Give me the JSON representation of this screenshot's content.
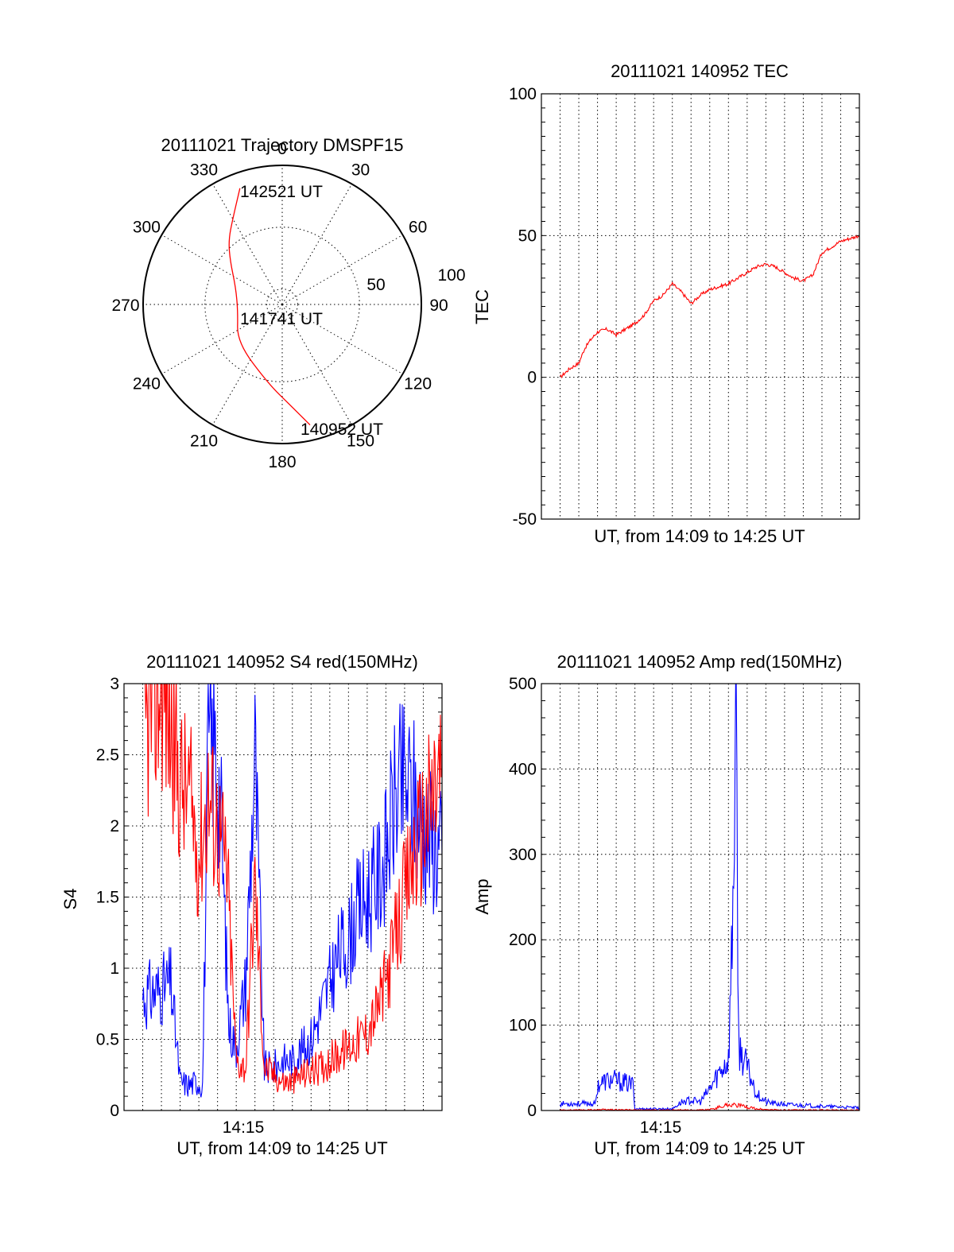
{
  "chart_data": [
    {
      "type": "polar",
      "title": "20111021 Trajectory DMSPF15",
      "angle_ticks": [
        "0",
        "30",
        "60",
        "90",
        "120",
        "150",
        "180",
        "210",
        "240",
        "270",
        "300",
        "330"
      ],
      "radius_ticks": [
        "50",
        "100"
      ],
      "series": [
        {
          "color": "#ff0000",
          "points": [
            {
              "az": 167,
              "el": 10,
              "label": "140952 UT"
            },
            {
              "az": 175,
              "el": 24
            },
            {
              "az": 190,
              "el": 38
            },
            {
              "az": 230,
              "el": 52
            },
            {
              "az": 262,
              "el": 61
            },
            {
              "az": 290,
              "el": 58
            },
            {
              "az": 310,
              "el": 46
            },
            {
              "az": 320,
              "el": 36
            },
            {
              "az": 330,
              "el": 26
            },
            {
              "az": 340,
              "el": 10,
              "label": "142521 UT"
            }
          ]
        }
      ],
      "annotations": [
        "142521 UT",
        "141741 UT",
        "140952 UT"
      ]
    },
    {
      "type": "line",
      "title": "20111021 140952 TEC",
      "xlabel": "UT, from 14:09 to 14:25 UT",
      "ylabel": "TEC",
      "ylim": [
        -50,
        100
      ],
      "y_ticks": [
        "100",
        "50",
        "0",
        "-50"
      ],
      "xlim_minutes": [
        -1.0,
        16.0
      ],
      "grid": true,
      "series": [
        {
          "color": "#ff0000",
          "x": [
            0.0,
            0.5,
            1.0,
            1.3,
            1.6,
            2.0,
            2.5,
            3.0,
            3.5,
            4.0,
            4.5,
            5.0,
            5.5,
            6.0,
            6.5,
            7.0,
            7.5,
            8.0,
            8.5,
            9.0,
            9.5,
            10.0,
            10.5,
            11.0,
            11.5,
            12.0,
            12.5,
            13.0,
            13.5,
            14.0,
            14.5,
            15.0,
            15.5,
            16.0
          ],
          "y": [
            0,
            3,
            5,
            10,
            13,
            16,
            17,
            15,
            17,
            19,
            22,
            27,
            29,
            33,
            30,
            26,
            29,
            31,
            32,
            33,
            35,
            37,
            39,
            40,
            39,
            37,
            35,
            34,
            36,
            44,
            46,
            48,
            49,
            50
          ]
        }
      ]
    },
    {
      "type": "line",
      "title": "20111021 140952 S4 red(150MHz)",
      "xlabel": "UT, from 14:09 to 14:25 UT",
      "ylabel": "S4",
      "ylim": [
        0,
        3
      ],
      "y_ticks": [
        "0",
        "0.5",
        "1",
        "1.5",
        "2",
        "2.5",
        "3"
      ],
      "x_tick_labels": [
        "14:15"
      ],
      "grid": true,
      "series": [
        {
          "color": "#0000ff",
          "x": [
            0.0,
            1.0,
            1.5,
            2.0,
            2.5,
            2.9,
            3.2,
            3.5,
            3.8,
            4.0,
            4.2,
            4.6,
            5.0,
            5.5,
            6.0,
            6.5,
            7.0,
            7.5,
            8.0,
            9.0,
            9.5,
            10.0,
            10.5,
            11.0,
            11.5,
            12.0,
            12.5,
            13.0,
            13.5,
            14.0,
            14.5,
            15.0,
            15.5,
            16.0
          ],
          "y": [
            0.8,
            0.85,
            0.9,
            0.2,
            0.18,
            0.2,
            0.18,
            2.5,
            2.6,
            2.4,
            2.0,
            0.6,
            0.45,
            0.9,
            2.5,
            0.3,
            0.3,
            0.35,
            0.35,
            0.5,
            0.7,
            0.9,
            1.1,
            1.2,
            1.4,
            1.5,
            1.6,
            1.8,
            2.2,
            2.3,
            2.2,
            2.0,
            1.9,
            1.8
          ]
        },
        {
          "color": "#ff0000",
          "x": [
            0.0,
            1.0,
            1.5,
            2.0,
            2.5,
            3.0,
            3.5,
            4.0,
            4.5,
            5.0,
            5.5,
            6.0,
            6.5,
            7.0,
            7.5,
            8.0,
            8.5,
            9.0,
            9.5,
            10.0,
            10.5,
            11.0,
            11.5,
            12.0,
            12.5,
            13.0,
            13.5,
            14.0,
            14.5,
            15.0,
            15.5,
            16.0
          ],
          "y": [
            2.6,
            3.0,
            2.7,
            2.3,
            2.2,
            1.8,
            2.2,
            2.0,
            1.7,
            0.35,
            0.3,
            1.6,
            0.3,
            0.25,
            0.2,
            0.2,
            0.25,
            0.28,
            0.3,
            0.35,
            0.4,
            0.45,
            0.5,
            0.55,
            0.7,
            0.9,
            1.2,
            1.5,
            1.8,
            2.0,
            2.2,
            2.4
          ]
        }
      ]
    },
    {
      "type": "line",
      "title": "20111021 140952 Amp red(150MHz)",
      "xlabel": "UT, from 14:09 to 14:25 UT",
      "ylabel": "Amp",
      "ylim": [
        0,
        500
      ],
      "y_ticks": [
        "0",
        "100",
        "200",
        "300",
        "400",
        "500"
      ],
      "x_tick_labels": [
        "14:15"
      ],
      "grid": true,
      "series": [
        {
          "color": "#0000ff",
          "x": [
            0.0,
            1.0,
            1.9,
            2.0,
            2.5,
            3.0,
            3.5,
            3.9,
            4.0,
            5.0,
            6.0,
            6.5,
            7.0,
            7.5,
            8.0,
            8.5,
            9.0,
            9.2,
            9.4,
            9.5,
            9.6,
            10.0,
            10.5,
            11.0,
            11.5,
            12.0,
            13.0,
            14.0,
            15.0,
            16.0
          ],
          "y": [
            8,
            8,
            8,
            30,
            35,
            35,
            32,
            30,
            2,
            2,
            2,
            10,
            12,
            10,
            25,
            45,
            60,
            200,
            480,
            120,
            70,
            50,
            20,
            10,
            8,
            7,
            6,
            5,
            4,
            3
          ]
        },
        {
          "color": "#ff0000",
          "x": [
            0.0,
            1.0,
            2.0,
            3.0,
            4.0,
            5.0,
            6.0,
            7.0,
            8.0,
            8.5,
            9.0,
            9.5,
            10.0,
            10.5,
            11.0,
            12.0,
            13.0,
            14.0,
            15.0,
            16.0
          ],
          "y": [
            0.5,
            0.5,
            1,
            1,
            0.5,
            0.5,
            0.5,
            0.5,
            1,
            4,
            7,
            6,
            4,
            2,
            1,
            0.5,
            0.5,
            0.5,
            0.5,
            0.5
          ]
        }
      ]
    }
  ]
}
